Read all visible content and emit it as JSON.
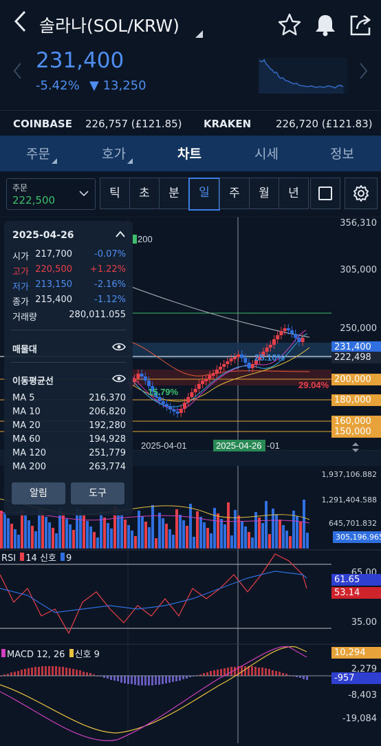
{
  "header": {
    "title": "솔라나(SOL/KRW)",
    "price": "231,400",
    "change_pct": "-5.42%",
    "change_amt": "▼ 13,250"
  },
  "exchanges": [
    {
      "name": "COINBASE",
      "value": "226,757 (£121.85)"
    },
    {
      "name": "KRAKEN",
      "value": "226,720 (£121.83)"
    }
  ],
  "tabs": [
    "주문",
    "호가",
    "차트",
    "시세",
    "정보"
  ],
  "toolbar": {
    "order_label": "주문",
    "order_value": "222,500",
    "periods": [
      "틱",
      "초",
      "분",
      "일",
      "주",
      "월",
      "년"
    ],
    "selected_period": "일"
  },
  "chart": {
    "price_axis": [
      "356,310",
      "305,000",
      "250,000",
      "231,400",
      "222,498",
      "200,000",
      "180,000",
      "160,000",
      "150,000"
    ],
    "pct_labels": [
      "25.10%",
      "29.04%",
      "15.79%"
    ],
    "dates": [
      "2025-04-01",
      "2025-04-26",
      "-01"
    ],
    "ma_legend_visible": "200",
    "volume_axis": [
      "1,937,106.882",
      "1,291,404.588",
      "645,701.832",
      "305,196.965"
    ],
    "rsi": {
      "label": "RSI",
      "period": "14",
      "signal_label": "신호",
      "signal": "9",
      "axis": [
        "65.00",
        "61.65",
        "53.14",
        "35.00"
      ]
    },
    "macd": {
      "label": "MACD 12, 26",
      "signal_label": "신호 9",
      "axis": [
        "10,294",
        "2,279",
        "-957",
        "-8,403",
        "-19,084"
      ]
    },
    "colors": {
      "up": "#e8404a",
      "down": "#2f6fe0",
      "accent": "#3b7ee6"
    }
  },
  "popup": {
    "date": "2025-04-26",
    "rows": [
      {
        "k": "시가",
        "v": "217,700",
        "p": "-0.07%"
      },
      {
        "k": "고가",
        "v": "220,500",
        "p": "+1.22%"
      },
      {
        "k": "저가",
        "v": "213,150",
        "p": "-2.16%"
      },
      {
        "k": "종가",
        "v": "215,400",
        "p": "-1.12%"
      },
      {
        "k": "거래량",
        "v": "280,011.055",
        "p": ""
      }
    ],
    "section1": "매물대",
    "section2": "이동평균선",
    "ma": [
      {
        "k": "MA 5",
        "v": "216,370"
      },
      {
        "k": "MA 10",
        "v": "206,820"
      },
      {
        "k": "MA 20",
        "v": "192,280"
      },
      {
        "k": "MA 60",
        "v": "194,928"
      },
      {
        "k": "MA 120",
        "v": "251,779"
      },
      {
        "k": "MA 200",
        "v": "263,774"
      }
    ],
    "btn_alarm": "알림",
    "btn_tool": "도구"
  }
}
